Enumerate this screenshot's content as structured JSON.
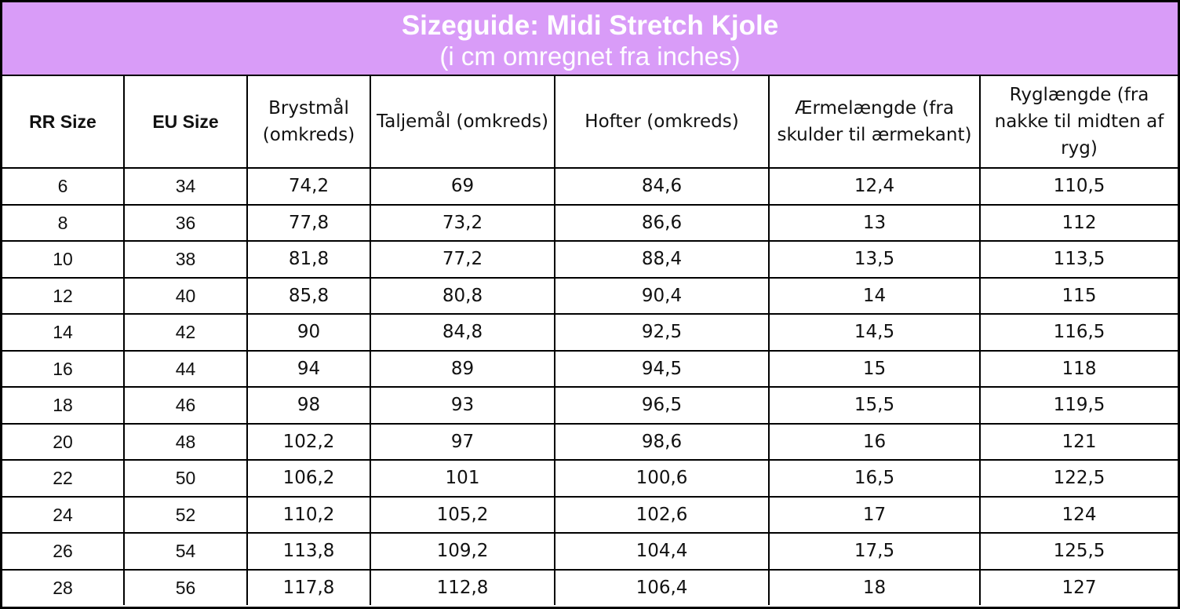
{
  "header": {
    "title": "Sizeguide: Midi Stretch Kjole",
    "subtitle": "(i cm omregnet fra inches)"
  },
  "table": {
    "headers": [
      "RR Size",
      "EU Size",
      "Brystmål (omkreds)",
      "Taljemål (omkreds)",
      "Hofter (omkreds)",
      "Ærmelængde (fra skulder til ærmekant)",
      "Ryglængde (fra nakke til midten af ryg)"
    ],
    "rows": [
      [
        "6",
        "34",
        "74,2",
        "69",
        "84,6",
        "12,4",
        "110,5"
      ],
      [
        "8",
        "36",
        "77,8",
        "73,2",
        "86,6",
        "13",
        "112"
      ],
      [
        "10",
        "38",
        "81,8",
        "77,2",
        "88,4",
        "13,5",
        "113,5"
      ],
      [
        "12",
        "40",
        "85,8",
        "80,8",
        "90,4",
        "14",
        "115"
      ],
      [
        "14",
        "42",
        "90",
        "84,8",
        "92,5",
        "14,5",
        "116,5"
      ],
      [
        "16",
        "44",
        "94",
        "89",
        "94,5",
        "15",
        "118"
      ],
      [
        "18",
        "46",
        "98",
        "93",
        "96,5",
        "15,5",
        "119,5"
      ],
      [
        "20",
        "48",
        "102,2",
        "97",
        "98,6",
        "16",
        "121"
      ],
      [
        "22",
        "50",
        "106,2",
        "101",
        "100,6",
        "16,5",
        "122,5"
      ],
      [
        "24",
        "52",
        "110,2",
        "105,2",
        "102,6",
        "17",
        "124"
      ],
      [
        "26",
        "54",
        "113,8",
        "109,2",
        "104,4",
        "17,5",
        "125,5"
      ],
      [
        "28",
        "56",
        "117,8",
        "112,8",
        "106,4",
        "18",
        "127"
      ]
    ]
  }
}
